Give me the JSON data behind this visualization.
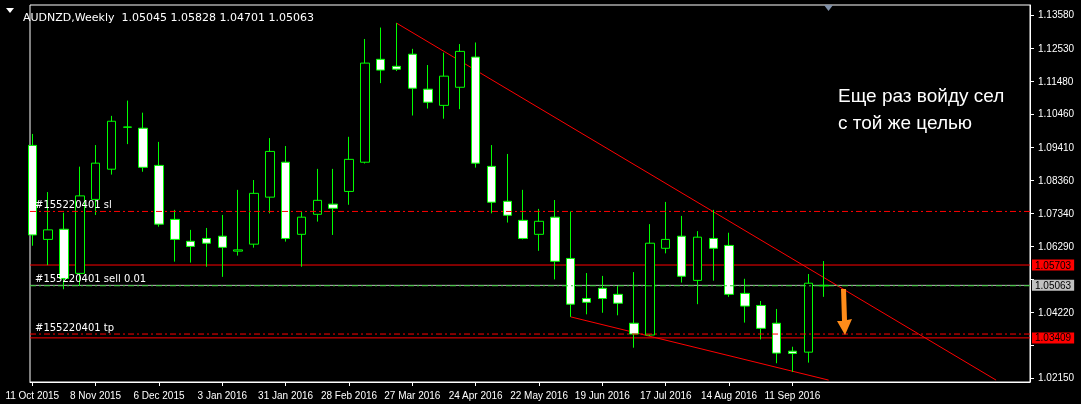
{
  "chart_data": {
    "type": "candlestick",
    "title": "AUDNZD,Weekly  1.05045 1.05828 1.04701 1.05063",
    "color": "#00ff00",
    "x": [
      "2015-10-11",
      "2015-10-18",
      "2015-10-25",
      "2015-11-01",
      "2015-11-08",
      "2015-11-15",
      "2015-11-22",
      "2015-11-29",
      "2015-12-06",
      "2015-12-13",
      "2015-12-20",
      "2015-12-27",
      "2016-01-03",
      "2016-01-10",
      "2016-01-17",
      "2016-01-24",
      "2016-01-31",
      "2016-02-07",
      "2016-02-14",
      "2016-02-21",
      "2016-02-28",
      "2016-03-06",
      "2016-03-13",
      "2016-03-20",
      "2016-03-27",
      "2016-04-03",
      "2016-04-10",
      "2016-04-17",
      "2016-04-24",
      "2016-05-01",
      "2016-05-08",
      "2016-05-15",
      "2016-05-22",
      "2016-05-29",
      "2016-06-05",
      "2016-06-12",
      "2016-06-19",
      "2016-06-26",
      "2016-07-03",
      "2016-07-10",
      "2016-07-17",
      "2016-07-24",
      "2016-07-31",
      "2016-08-07",
      "2016-08-14",
      "2016-08-21",
      "2016-08-28",
      "2016-09-04",
      "2016-09-11",
      "2016-09-18",
      "2016-09-25"
    ],
    "ohlc": [
      [
        1.0947,
        1.0983,
        1.0631,
        1.0665
      ],
      [
        1.0651,
        1.08,
        1.057,
        1.0681
      ],
      [
        1.0683,
        1.0735,
        1.0494,
        1.0528
      ],
      [
        1.0544,
        1.088,
        1.0504,
        1.0788
      ],
      [
        1.0777,
        1.0948,
        1.0728,
        1.0891
      ],
      [
        1.0872,
        1.104,
        1.0855,
        1.1023
      ],
      [
        1.1004,
        1.1088,
        1.0951,
        1.1005
      ],
      [
        1.1001,
        1.105,
        1.0864,
        1.0878
      ],
      [
        1.0884,
        1.0958,
        1.0691,
        1.0699
      ],
      [
        1.0714,
        1.0744,
        1.0581,
        1.0651
      ],
      [
        1.0645,
        1.0681,
        1.0578,
        1.0629
      ],
      [
        1.0654,
        1.0687,
        1.0565,
        1.0639
      ],
      [
        1.0661,
        1.0728,
        1.0533,
        1.0626
      ],
      [
        1.0614,
        1.0807,
        1.06,
        1.0618
      ],
      [
        1.0636,
        1.0838,
        1.0625,
        1.0796
      ],
      [
        1.0784,
        1.097,
        1.0733,
        1.0928
      ],
      [
        1.0894,
        1.0945,
        1.0644,
        1.0654
      ],
      [
        1.0667,
        1.0737,
        1.0565,
        1.0721
      ],
      [
        1.073,
        1.0873,
        1.0707,
        1.0774
      ],
      [
        1.0762,
        1.0873,
        1.0665,
        1.0749
      ],
      [
        1.0802,
        1.0974,
        1.076,
        1.0903
      ],
      [
        1.0894,
        1.1282,
        1.089,
        1.1206
      ],
      [
        1.1218,
        1.1318,
        1.1143,
        1.1184
      ],
      [
        1.1196,
        1.1332,
        1.1181,
        1.1187
      ],
      [
        1.1234,
        1.1251,
        1.1041,
        1.1127
      ],
      [
        1.1124,
        1.12,
        1.1063,
        1.1083
      ],
      [
        1.1073,
        1.1239,
        1.1031,
        1.1165
      ],
      [
        1.113,
        1.1266,
        1.1061,
        1.1243
      ],
      [
        1.1225,
        1.1271,
        1.0877,
        1.0891
      ],
      [
        1.0881,
        1.0948,
        1.0733,
        1.0768
      ],
      [
        1.0771,
        1.092,
        1.0704,
        1.0727
      ],
      [
        1.0711,
        1.0807,
        1.0651,
        1.0654
      ],
      [
        1.0667,
        1.0747,
        1.0615,
        1.0708
      ],
      [
        1.0721,
        1.0775,
        1.0525,
        1.0582
      ],
      [
        1.0591,
        1.0739,
        1.0407,
        1.0447
      ],
      [
        1.0465,
        1.0545,
        1.0415,
        1.0453
      ],
      [
        1.0497,
        1.0536,
        1.042,
        1.0465
      ],
      [
        1.0478,
        1.0504,
        1.0412,
        1.045
      ],
      [
        1.0387,
        1.0548,
        1.031,
        1.0353
      ],
      [
        1.035,
        1.0699,
        1.0347,
        1.0639
      ],
      [
        1.0623,
        1.0769,
        1.0607,
        1.0651
      ],
      [
        1.0661,
        1.0725,
        1.0515,
        1.0535
      ],
      [
        1.0522,
        1.0677,
        1.0447,
        1.0658
      ],
      [
        1.0654,
        1.0744,
        1.0521,
        1.0623
      ],
      [
        1.0632,
        1.0672,
        1.047,
        1.0478
      ],
      [
        1.0481,
        1.0527,
        1.0389,
        1.0441
      ],
      [
        1.0443,
        1.0457,
        1.0336,
        1.0371
      ],
      [
        1.0387,
        1.0432,
        1.0261,
        1.0293
      ],
      [
        1.0299,
        1.0313,
        1.0234,
        1.0292
      ],
      [
        1.0296,
        1.0542,
        1.0263,
        1.0513
      ],
      [
        1.05045,
        1.05828,
        1.04701,
        1.05063
      ]
    ],
    "series": [
      {
        "type": "line",
        "color": "#ff0000",
        "x": [
          "2016-03-20",
          "2016-12-10"
        ],
        "values": [
          1.1332,
          1.0208
        ]
      },
      {
        "type": "line",
        "color": "#ff0000",
        "x": [
          "2016-06-05",
          "2016-09-27"
        ],
        "values": [
          1.0407,
          1.0208
        ]
      }
    ],
    "xlim": [
      "2015-10-10",
      "2016-12-25"
    ],
    "xticks": [
      {
        "value": "2015-10-11",
        "label": "11 Oct 2015"
      },
      {
        "value": "2015-11-08",
        "label": "8 Nov 2015"
      },
      {
        "value": "2015-12-06",
        "label": "6 Dec 2015"
      },
      {
        "value": "2016-01-03",
        "label": "3 Jan 2016"
      },
      {
        "value": "2016-01-31",
        "label": "31 Jan 2016"
      },
      {
        "value": "2016-02-28",
        "label": "28 Feb 2016"
      },
      {
        "value": "2016-03-27",
        "label": "27 Mar 2016"
      },
      {
        "value": "2016-04-24",
        "label": "24 Apr 2016"
      },
      {
        "value": "2016-05-22",
        "label": "22 May 2016"
      },
      {
        "value": "2016-06-19",
        "label": "19 Jun 2016"
      },
      {
        "value": "2016-07-17",
        "label": "17 Jul 2016"
      },
      {
        "value": "2016-08-14",
        "label": "14 Aug 2016"
      },
      {
        "value": "2016-09-11",
        "label": "11 Sep 2016"
      }
    ],
    "ylim": [
      1.0202,
      1.1389
    ],
    "yticks": [
      {
        "value": 1.1358,
        "label": "1.13580"
      },
      {
        "value": 1.1253,
        "label": "1.12530"
      },
      {
        "value": 1.1148,
        "label": "1.11480"
      },
      {
        "value": 1.1046,
        "label": "1.10460"
      },
      {
        "value": 1.0941,
        "label": "1.09410"
      },
      {
        "value": 1.0836,
        "label": "1.08360"
      },
      {
        "value": 1.0734,
        "label": "1.07340"
      },
      {
        "value": 1.0629,
        "label": "1.06290"
      },
      {
        "value": 1.0527,
        "label": null
      },
      {
        "value": 1.0422,
        "label": "1.04220"
      },
      {
        "value": 1.0317,
        "label": null
      },
      {
        "value": 1.0215,
        "label": "1.02150"
      }
    ],
    "ref_lines": [
      {
        "axis": "y",
        "value": 1.0739,
        "label": "#155220401 sl",
        "color": "#ff0000",
        "line_style": "dashed"
      },
      {
        "axis": "y",
        "value": 1.05063,
        "label": "1.05063",
        "color": "#c0c0c0",
        "line_style": "solid"
      },
      {
        "axis": "y",
        "value": 1.0505,
        "label": "#155220401 sell 0.01",
        "color": "#32cd32",
        "line_style": "dashed"
      },
      {
        "axis": "y",
        "value": 1.0353,
        "label": "#155220401 tp",
        "color": "#ff0000",
        "line_style": "dashed"
      },
      {
        "axis": "y",
        "value": 1.05703,
        "label": "1.05703",
        "color": "#ff0000",
        "line_style": "solid"
      },
      {
        "axis": "y",
        "value": 1.03409,
        "label": "1.03409",
        "color": "#ff0000",
        "line_style": "solid"
      }
    ],
    "annotations": [
      "Еще раз войду сел с той же целью"
    ],
    "grid": false
  }
}
